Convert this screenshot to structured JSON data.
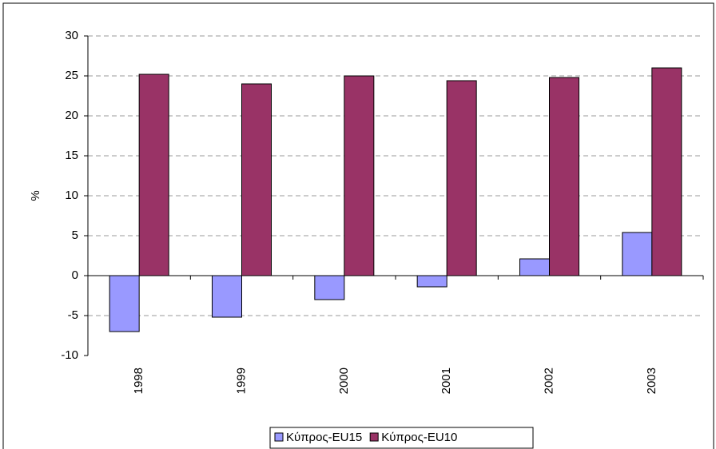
{
  "chart_data": {
    "type": "bar",
    "y_label": "%",
    "categories": [
      "1998",
      "1999",
      "2000",
      "2001",
      "2002",
      "2003"
    ],
    "series": [
      {
        "name": "Κύπρος-EU15",
        "color": "#9999ff",
        "values": [
          -7.0,
          -5.2,
          -3.0,
          -1.4,
          2.1,
          5.4
        ]
      },
      {
        "name": "Κύπρος-EU10",
        "color": "#993366",
        "values": [
          25.2,
          24.0,
          25.0,
          24.4,
          24.8,
          26.0
        ]
      }
    ],
    "ylim": [
      -10,
      30
    ],
    "yticks": [
      -10,
      -5,
      0,
      5,
      10,
      15,
      20,
      25,
      30
    ],
    "grid": true
  }
}
